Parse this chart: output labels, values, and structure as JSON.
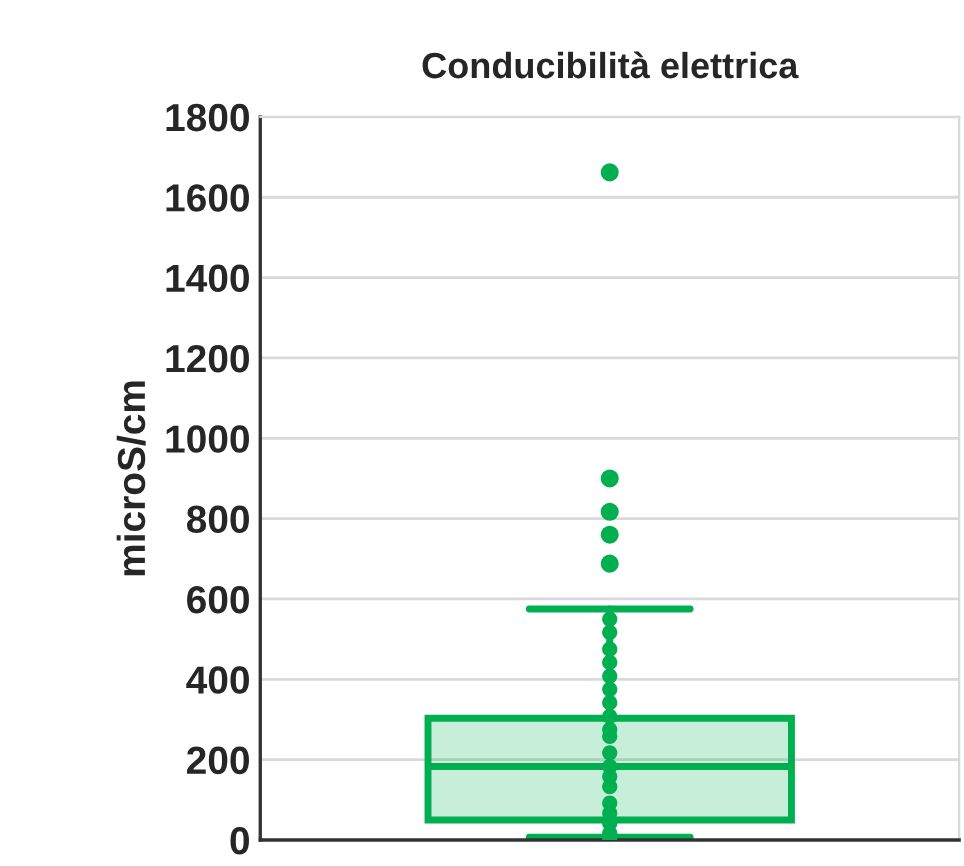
{
  "chart_data": {
    "type": "box",
    "title": "Conducibilità elettrica",
    "ylabel": "microS/cm",
    "categories": [
      null
    ],
    "ylim": [
      0,
      1800
    ],
    "yticks": [
      0,
      200,
      400,
      600,
      800,
      1000,
      1200,
      1400,
      1600,
      1800
    ],
    "grid": "y",
    "tick_labels": "y",
    "marker": "circle",
    "series": [
      {
        "color": "#00b050",
        "boxes": [
          {
            "low": 7,
            "q1": 50,
            "median": 183,
            "q3": 303,
            "high": 575,
            "outliers": [
              688,
              760,
              817,
              900,
              1662
            ]
          }
        ]
      },
      {
        "type": "scatter",
        "color": "#00b050",
        "x": [
          null,
          null,
          null,
          null,
          null,
          null,
          null,
          null,
          null,
          null,
          null,
          null,
          null,
          null,
          null,
          null,
          null,
          null,
          null,
          null
        ],
        "values": [
          550,
          517,
          475,
          442,
          408,
          375,
          342,
          308,
          275,
          258,
          null,
          217,
          183,
          158,
          133,
          92,
          67,
          42,
          17,
          0
        ]
      }
    ]
  }
}
